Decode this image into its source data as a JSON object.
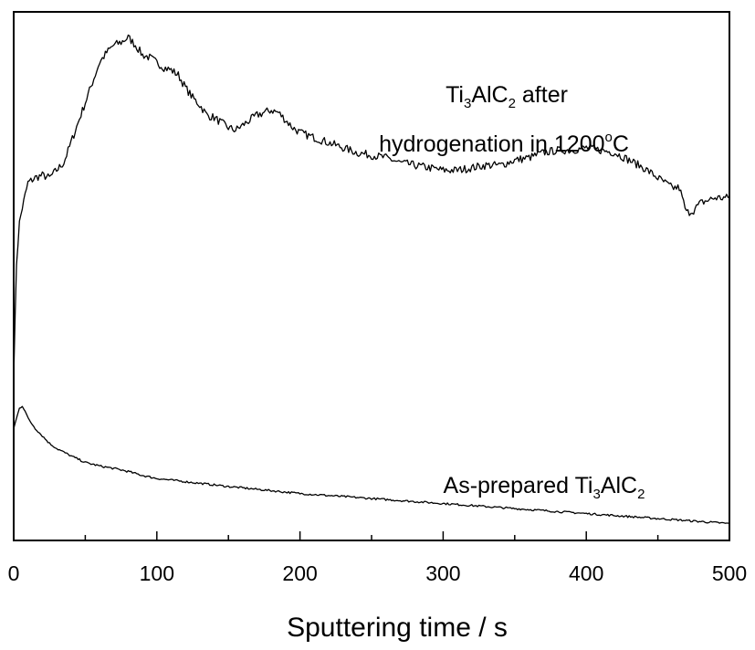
{
  "chart_data": {
    "type": "line",
    "xlabel": "Sputtering time / s",
    "ylabel": "",
    "xlim": [
      0,
      500
    ],
    "ylim": [
      0,
      1
    ],
    "x_ticks": [
      0,
      100,
      200,
      300,
      400,
      500
    ],
    "x_tick_labels": [
      "0",
      "100",
      "200",
      "300",
      "400",
      "500"
    ],
    "y_tick_labels_shown": false,
    "grid": false,
    "legend": "none",
    "annotations": {
      "upper": {
        "line1": {
          "a": "Ti",
          "a_sub": "3",
          "b": "AlC",
          "b_sub": "2",
          "c": " after"
        },
        "line2": {
          "a": "hydrogenation in 1200",
          "a_sup": "o",
          "b": "C"
        }
      },
      "lower": {
        "a": "As-prepared Ti",
        "a_sub": "3",
        "b": "AlC",
        "b_sub": "2"
      }
    },
    "series": [
      {
        "x": [
          0,
          2,
          4,
          6,
          10,
          15,
          20,
          25,
          30,
          35,
          40,
          45,
          50,
          55,
          60,
          65,
          70,
          75,
          80,
          85,
          90,
          95,
          100,
          105,
          110,
          115,
          120,
          125,
          130,
          135,
          140,
          145,
          150,
          155,
          160,
          165,
          170,
          175,
          180,
          185,
          190,
          195,
          200,
          210,
          220,
          230,
          240,
          250,
          260,
          270,
          280,
          290,
          300,
          310,
          320,
          330,
          340,
          350,
          360,
          370,
          380,
          390,
          400,
          410,
          420,
          430,
          440,
          450,
          455,
          460,
          465,
          470,
          475,
          480,
          490,
          500
        ],
        "values": [
          0.33,
          0.55,
          0.63,
          0.66,
          0.71,
          0.72,
          0.725,
          0.72,
          0.735,
          0.75,
          0.79,
          0.83,
          0.87,
          0.91,
          0.95,
          0.97,
          0.985,
          0.99,
          1.0,
          0.985,
          0.965,
          0.96,
          0.95,
          0.94,
          0.935,
          0.925,
          0.9,
          0.88,
          0.865,
          0.845,
          0.84,
          0.83,
          0.82,
          0.815,
          0.825,
          0.835,
          0.845,
          0.85,
          0.855,
          0.85,
          0.835,
          0.82,
          0.81,
          0.8,
          0.79,
          0.78,
          0.77,
          0.765,
          0.76,
          0.75,
          0.745,
          0.74,
          0.735,
          0.735,
          0.74,
          0.745,
          0.745,
          0.755,
          0.76,
          0.77,
          0.775,
          0.775,
          0.78,
          0.775,
          0.77,
          0.755,
          0.74,
          0.72,
          0.71,
          0.7,
          0.7,
          0.65,
          0.655,
          0.67,
          0.68,
          0.68
        ]
      },
      {
        "x": [
          0,
          2,
          4,
          6,
          8,
          10,
          15,
          20,
          25,
          30,
          40,
          50,
          60,
          70,
          80,
          90,
          100,
          125,
          150,
          175,
          200,
          250,
          300,
          350,
          400,
          450,
          500
        ],
        "values": [
          0.22,
          0.24,
          0.26,
          0.265,
          0.255,
          0.24,
          0.22,
          0.205,
          0.19,
          0.18,
          0.165,
          0.152,
          0.145,
          0.14,
          0.134,
          0.126,
          0.12,
          0.112,
          0.104,
          0.097,
          0.09,
          0.08,
          0.07,
          0.06,
          0.05,
          0.04,
          0.03
        ]
      }
    ]
  }
}
